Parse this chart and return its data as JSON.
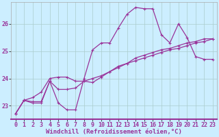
{
  "xlabel": "Windchill (Refroidissement éolien,°C)",
  "x_values": [
    0,
    1,
    2,
    3,
    4,
    5,
    6,
    7,
    8,
    9,
    10,
    11,
    12,
    13,
    14,
    15,
    16,
    17,
    18,
    19,
    20,
    21,
    22,
    23
  ],
  "line1": [
    22.7,
    23.2,
    23.1,
    23.1,
    23.9,
    23.1,
    22.85,
    22.85,
    24.0,
    25.05,
    25.3,
    25.3,
    25.85,
    26.35,
    26.6,
    26.55,
    26.55,
    25.6,
    25.3,
    26.0,
    25.5,
    24.8,
    24.7,
    24.7
  ],
  "line2": [
    22.7,
    23.2,
    23.15,
    23.15,
    23.9,
    23.6,
    23.6,
    23.65,
    23.9,
    23.85,
    24.05,
    24.25,
    24.45,
    24.55,
    24.75,
    24.85,
    24.95,
    25.05,
    25.1,
    25.2,
    25.3,
    25.35,
    25.45,
    25.45
  ],
  "line3": [
    22.7,
    23.2,
    23.3,
    23.5,
    24.0,
    24.05,
    24.05,
    23.9,
    23.9,
    24.0,
    24.1,
    24.25,
    24.4,
    24.55,
    24.65,
    24.75,
    24.85,
    24.95,
    25.05,
    25.1,
    25.2,
    25.3,
    25.35,
    25.45
  ],
  "ylim": [
    22.5,
    26.8
  ],
  "yticks": [
    23,
    24,
    25,
    26
  ],
  "xticks": [
    0,
    1,
    2,
    3,
    4,
    5,
    6,
    7,
    8,
    9,
    10,
    11,
    12,
    13,
    14,
    15,
    16,
    17,
    18,
    19,
    20,
    21,
    22,
    23
  ],
  "line_color": "#993399",
  "bg_color": "#cceeff",
  "grid_color": "#aacccc",
  "marker": "+",
  "marker_size": 3,
  "line_width": 0.9,
  "tick_label_size": 6,
  "xlabel_size": 6.5
}
